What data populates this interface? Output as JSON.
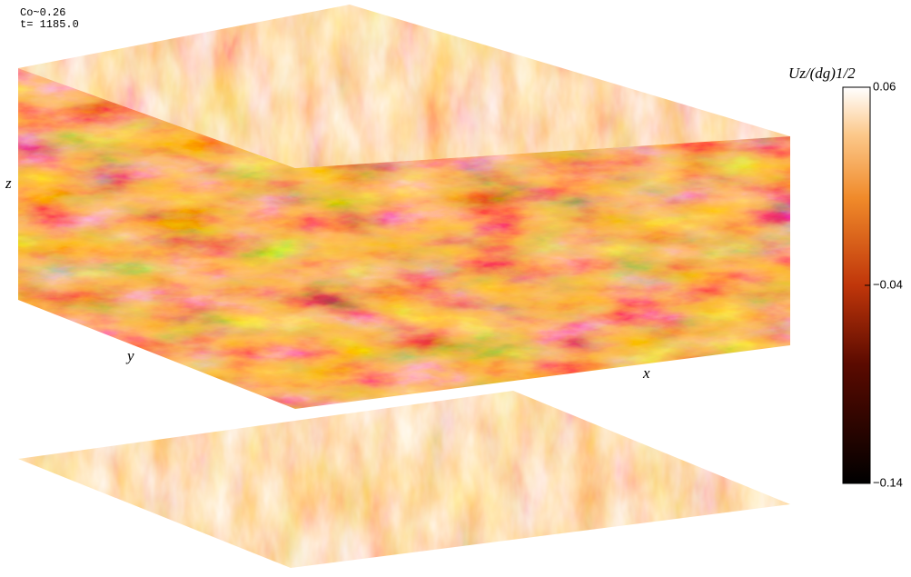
{
  "annotation": {
    "coriolis": "Co~0.26",
    "time": "t= 1185.0"
  },
  "axes": {
    "x": "x",
    "y": "y",
    "z": "z"
  },
  "colorbar": {
    "label": "Uz/(dg)1/2",
    "lim": [
      -0.14,
      0.06
    ],
    "ticks": [
      {
        "value": 0.06,
        "label": "0.06"
      },
      {
        "value": -0.04,
        "label": "−0.04"
      },
      {
        "value": -0.14,
        "label": "−0.14"
      }
    ]
  }
}
